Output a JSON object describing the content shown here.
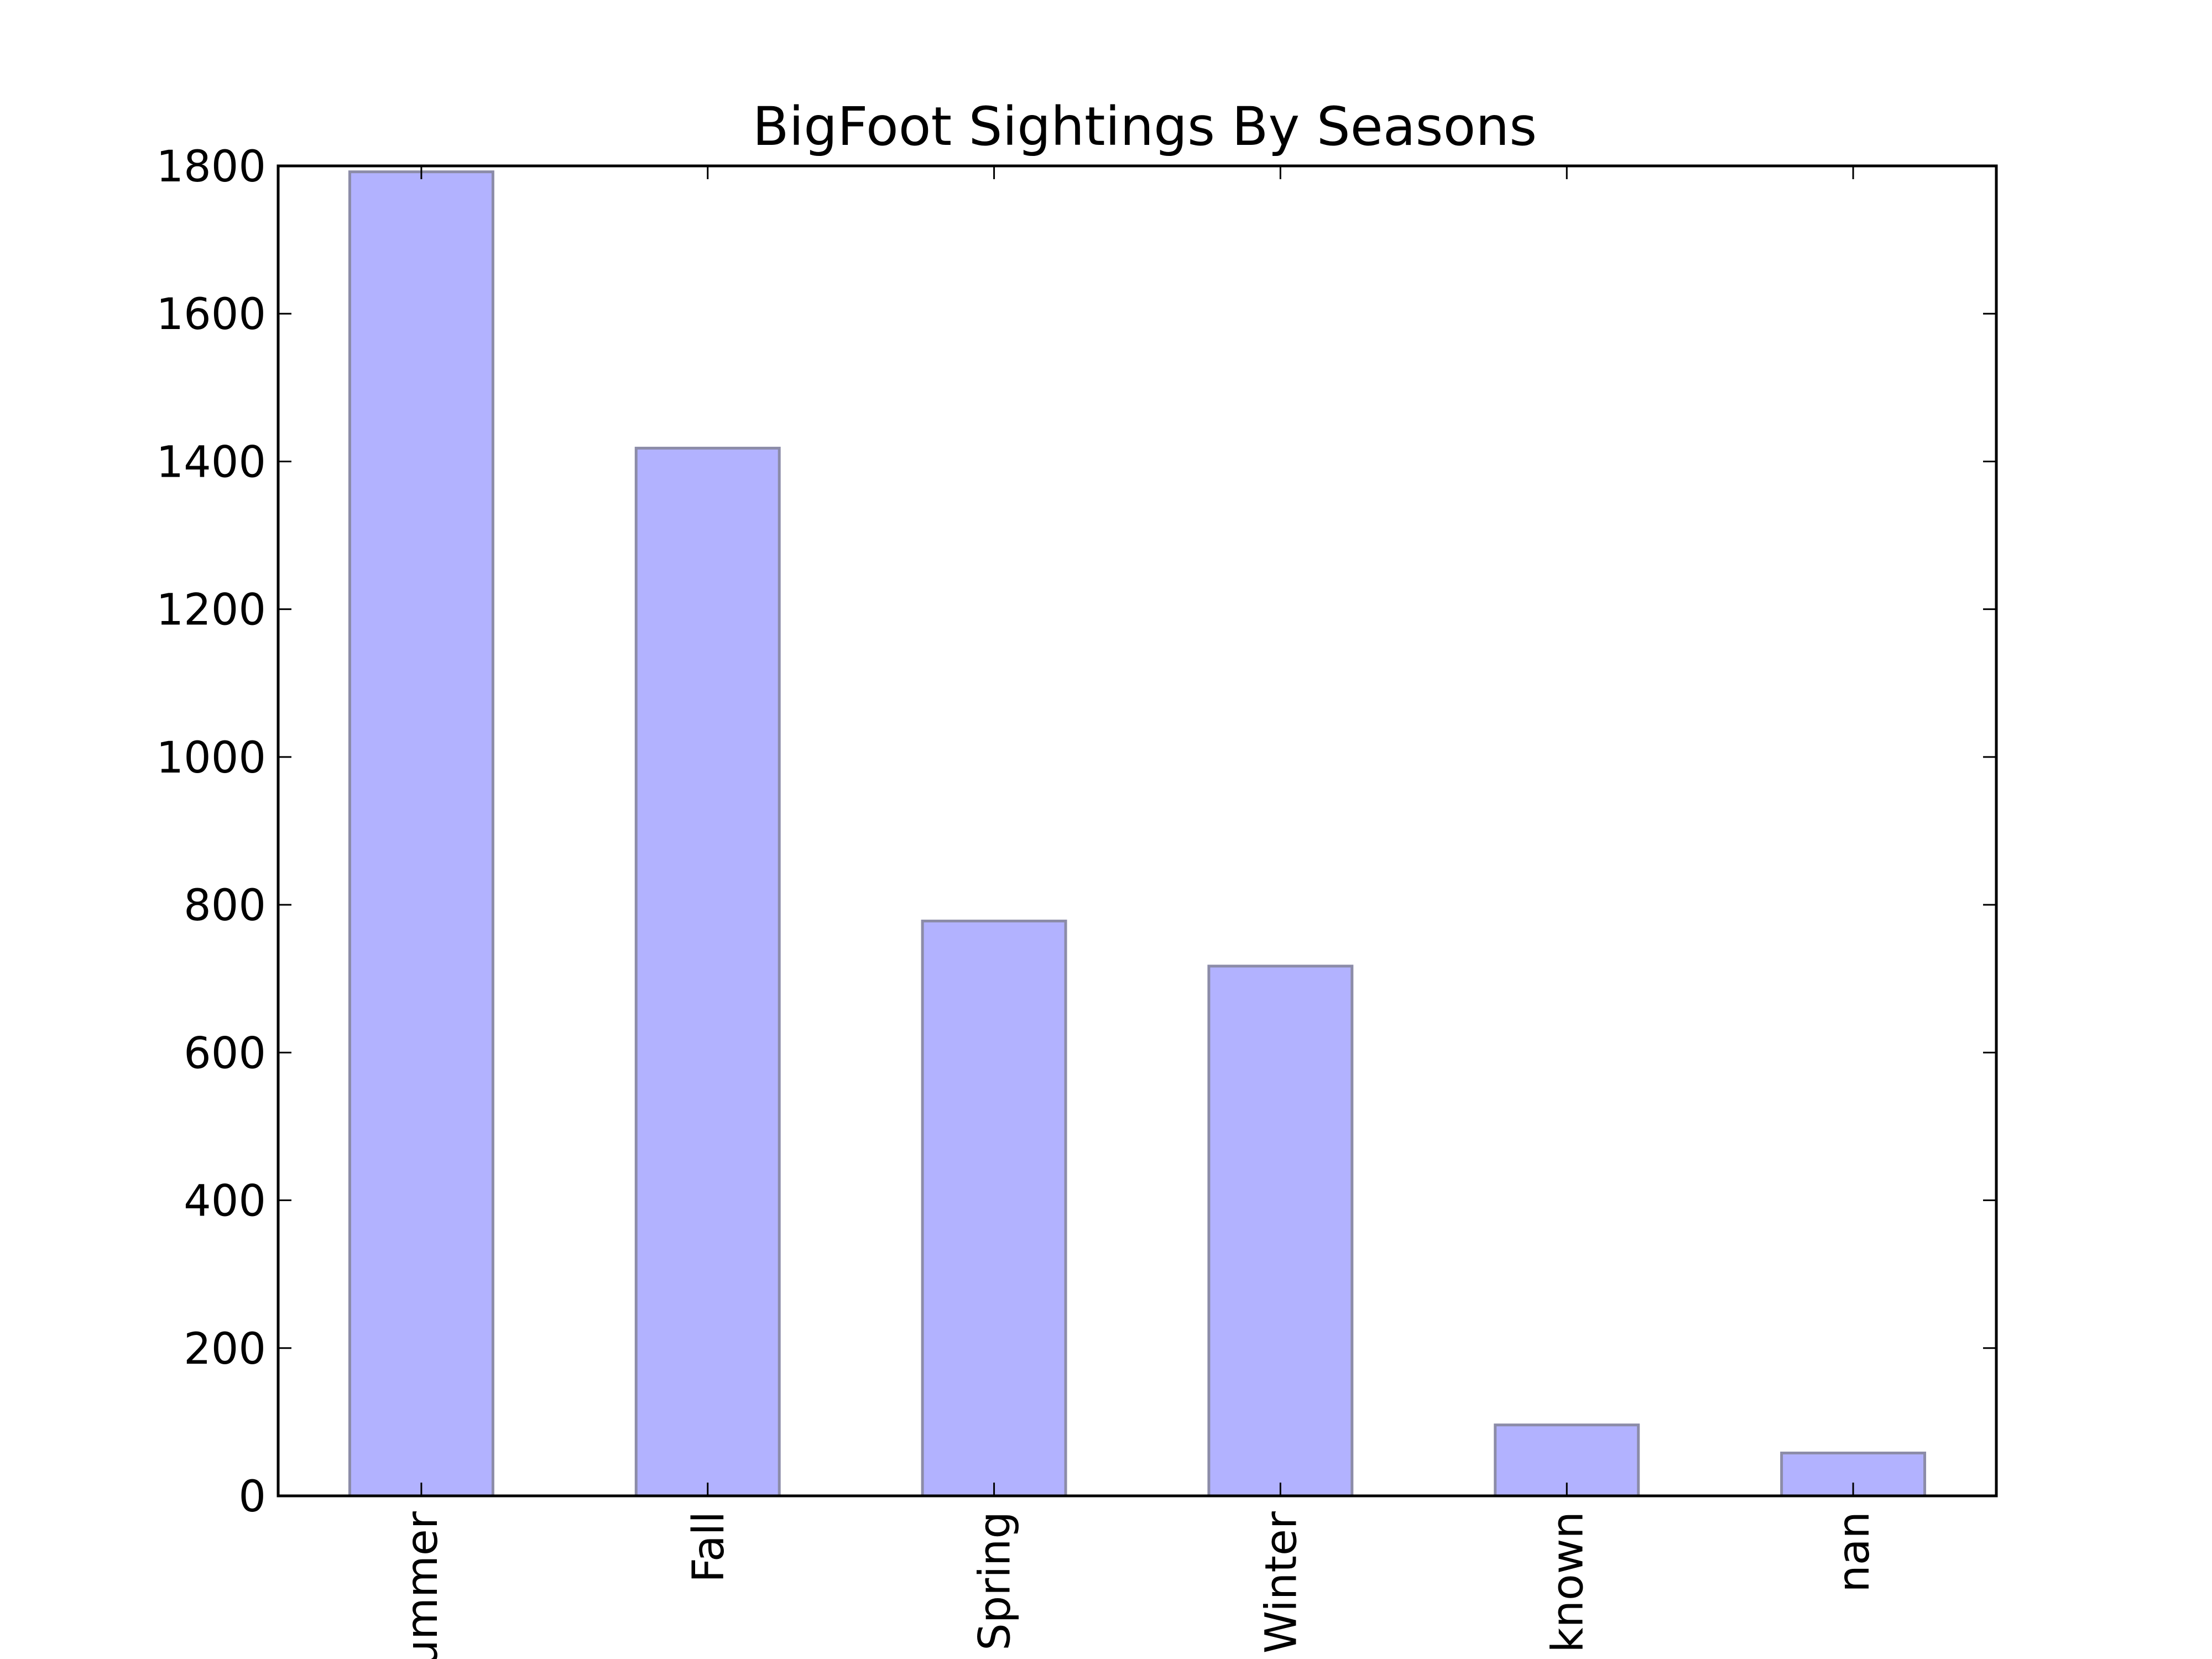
{
  "chart_data": {
    "type": "bar",
    "title": "BigFoot Sightings By Seasons",
    "xlabel": "",
    "ylabel": "",
    "categories": [
      "Summer",
      "Fall",
      "Spring",
      "Winter",
      "Unknown",
      "nan"
    ],
    "visible_tick_text": [
      "ummer",
      "Fall",
      "Spring",
      "Winter",
      "known",
      "nan"
    ],
    "values": [
      1792,
      1418,
      778,
      717,
      96,
      58
    ],
    "ylim": [
      0,
      1800
    ],
    "yticks": [
      0,
      200,
      400,
      600,
      800,
      1000,
      1200,
      1400,
      1600,
      1800
    ],
    "ytick_labels": [
      "0",
      "200",
      "400",
      "600",
      "800",
      "1000",
      "1200",
      "1400",
      "1600",
      "1800"
    ],
    "grid": false,
    "legend": "none",
    "colors": {
      "bar_fill": "#b2b2ff",
      "bar_edge": "#8c8ca8",
      "axis": "#000000",
      "background": "#ffffff"
    }
  }
}
